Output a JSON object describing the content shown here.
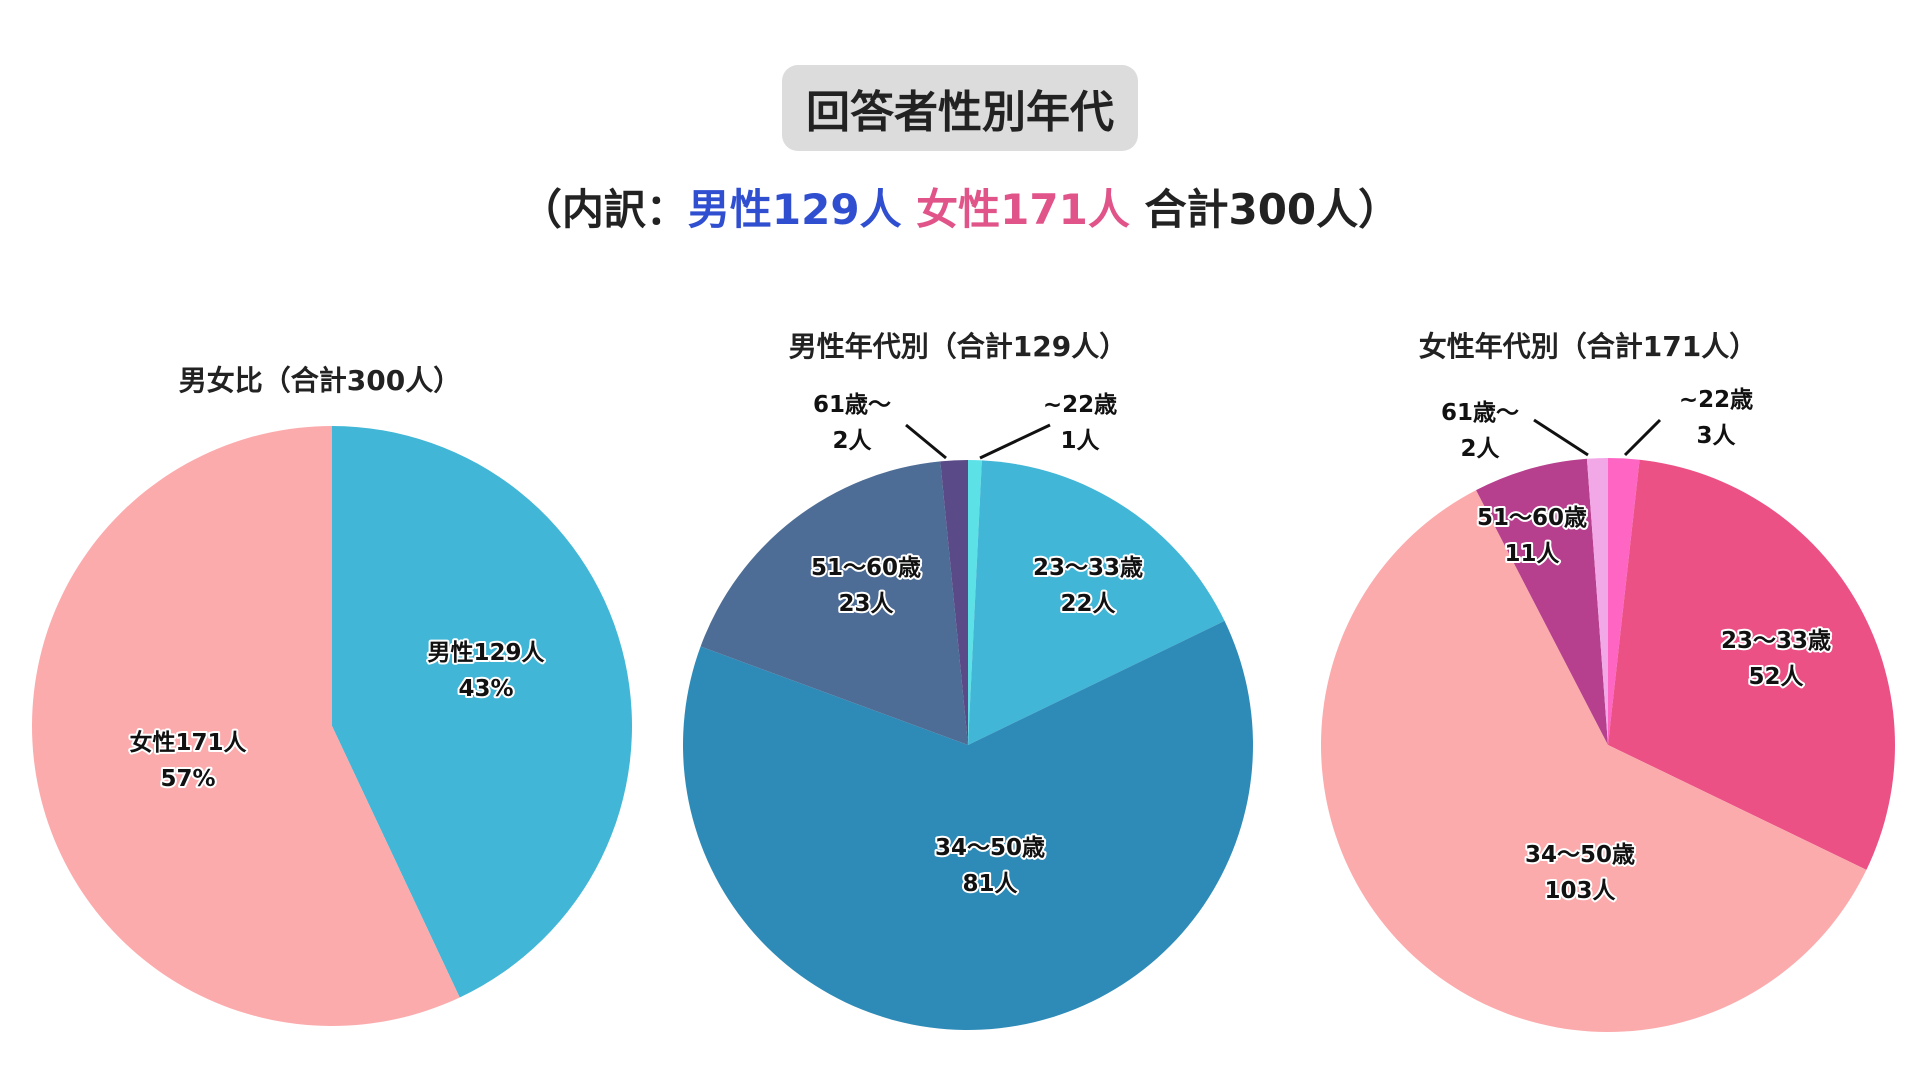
{
  "header": {
    "title": "回答者性別年代",
    "subtitle_open": "（内訳：",
    "subtitle_male": "男性129人",
    "subtitle_female": "女性171人",
    "subtitle_total": "合計300人）"
  },
  "chart_data": [
    {
      "type": "pie",
      "title": "男女比（合計300人）",
      "slices": [
        {
          "label": "男性129人",
          "sublabel": "43%",
          "value": 129,
          "color": "#41b6d6"
        },
        {
          "label": "女性171人",
          "sublabel": "57%",
          "value": 171,
          "color": "#fcabad"
        }
      ]
    },
    {
      "type": "pie",
      "title": "男性年代別（合計129人）",
      "slices": [
        {
          "label": "~22歳",
          "sublabel": "1人",
          "value": 1,
          "color": "#5ce1e6"
        },
        {
          "label": "23〜33歳",
          "sublabel": "22人",
          "value": 22,
          "color": "#41b6d6"
        },
        {
          "label": "34〜50歳",
          "sublabel": "81人",
          "value": 81,
          "color": "#2e8bb8"
        },
        {
          "label": "51〜60歳",
          "sublabel": "23人",
          "value": 23,
          "color": "#4e6d96"
        },
        {
          "label": "61歳〜",
          "sublabel": "2人",
          "value": 2,
          "color": "#5a4a87"
        }
      ]
    },
    {
      "type": "pie",
      "title": "女性年代別（合計171人）",
      "slices": [
        {
          "label": "~22歳",
          "sublabel": "3人",
          "value": 3,
          "color": "#ff66c4"
        },
        {
          "label": "23〜33歳",
          "sublabel": "52人",
          "value": 52,
          "color": "#ec5186"
        },
        {
          "label": "34〜50歳",
          "sublabel": "103人",
          "value": 103,
          "color": "#fcabad"
        },
        {
          "label": "51〜60歳",
          "sublabel": "11人",
          "value": 11,
          "color": "#b6408e"
        },
        {
          "label": "61歳〜",
          "sublabel": "2人",
          "value": 2,
          "color": "#f2a8e6"
        }
      ]
    }
  ]
}
